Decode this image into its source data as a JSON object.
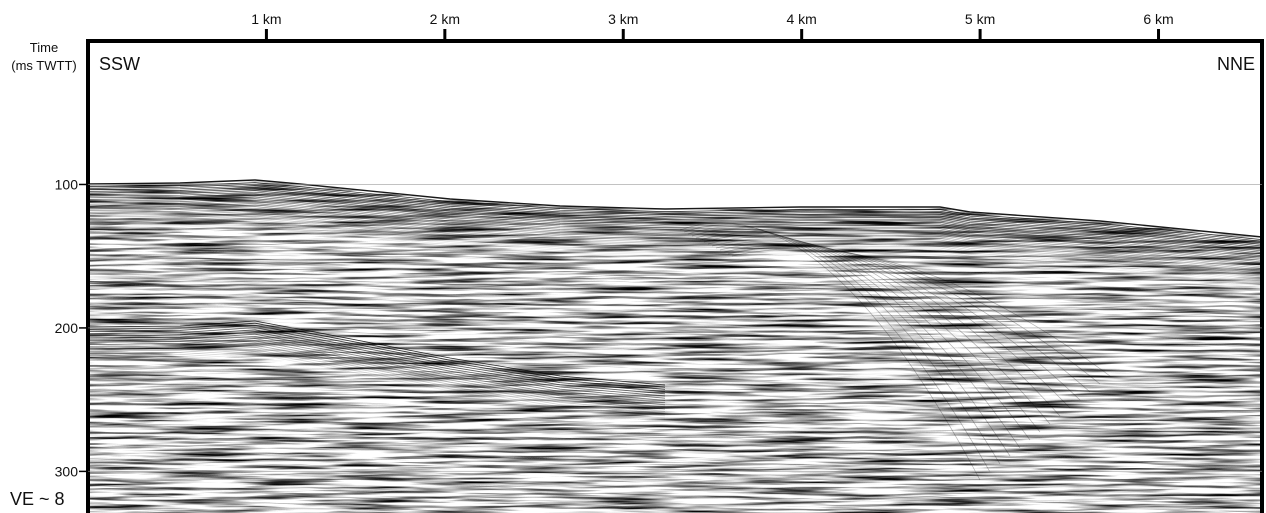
{
  "chart_data": {
    "type": "seismic-section",
    "y_label": "Time",
    "y_unit": "(ms TWTT)",
    "left_label": "SSW",
    "right_label": "NNE",
    "note": "VE ~ 8",
    "xlim": [
      0,
      6.58
    ],
    "ylim": [
      0,
      329
    ],
    "xticks": [
      {
        "value": 1,
        "label": "1 km"
      },
      {
        "value": 2,
        "label": "2 km"
      },
      {
        "value": 3,
        "label": "3 km"
      },
      {
        "value": 4,
        "label": "4 km"
      },
      {
        "value": 5,
        "label": "5 km"
      },
      {
        "value": 6,
        "label": "6 km"
      }
    ],
    "yticks": [
      100,
      200,
      300
    ],
    "grid": true
  }
}
